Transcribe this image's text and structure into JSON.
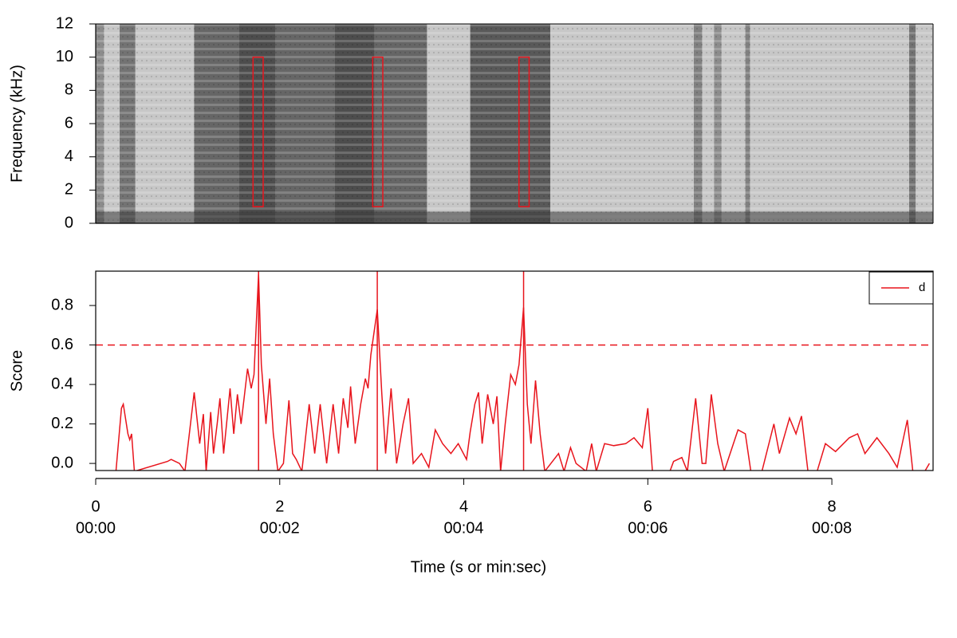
{
  "chart_data": [
    {
      "type": "spectrogram",
      "y_label": "Frequency (kHz)",
      "xlim": [
        0,
        9.1
      ],
      "ylim": [
        0,
        12
      ],
      "yticks": [
        0,
        2,
        4,
        6,
        8,
        10,
        12
      ],
      "background_level": 0.22,
      "bands": [
        {
          "start": 0,
          "end": 0.09,
          "level": 0.45
        },
        {
          "start": 0.26,
          "end": 0.43,
          "level": 0.55
        },
        {
          "start": 1.07,
          "end": 1.56,
          "level": 0.6
        },
        {
          "start": 1.56,
          "end": 1.95,
          "level": 0.7
        },
        {
          "start": 1.95,
          "end": 2.6,
          "level": 0.6
        },
        {
          "start": 2.6,
          "end": 3.03,
          "level": 0.7
        },
        {
          "start": 3.03,
          "end": 3.6,
          "level": 0.6
        },
        {
          "start": 4.07,
          "end": 4.94,
          "level": 0.65
        },
        {
          "start": 6.5,
          "end": 6.59,
          "level": 0.5
        },
        {
          "start": 6.72,
          "end": 6.8,
          "level": 0.45
        },
        {
          "start": 7.06,
          "end": 7.11,
          "level": 0.5
        },
        {
          "start": 8.84,
          "end": 8.91,
          "level": 0.55
        }
      ],
      "box_color": "#e8141c",
      "boxes": [
        {
          "start": 1.71,
          "end": 1.82,
          "low": 1,
          "high": 10
        },
        {
          "start": 3.01,
          "end": 3.12,
          "low": 1,
          "high": 10
        },
        {
          "start": 4.6,
          "end": 4.71,
          "low": 1,
          "high": 10
        }
      ]
    },
    {
      "type": "line",
      "y_label": "Score",
      "x_label": "Time (s or min:sec)",
      "xlim": [
        0,
        9.1
      ],
      "ylim": [
        -0.036,
        0.974
      ],
      "xticks": [
        0,
        2,
        4,
        6,
        8
      ],
      "xtick_time_labels": [
        {
          "value": 0,
          "label": "00:00"
        },
        {
          "value": 2,
          "label": "00:02"
        },
        {
          "value": 4,
          "label": "00:04"
        },
        {
          "value": 6,
          "label": "00:06"
        },
        {
          "value": 8,
          "label": "00:08"
        }
      ],
      "yticks": [
        {
          "value": 0,
          "label": "0.0"
        },
        0.2,
        0.4,
        0.6,
        0.8
      ],
      "threshold": 0.6,
      "detections": [
        1.77,
        3.06,
        4.65
      ],
      "legend": "topright",
      "x": [
        0.22,
        0.28,
        0.3,
        0.35,
        0.37,
        0.39,
        0.42,
        0.78,
        0.82,
        0.91,
        0.97,
        1.07,
        1.13,
        1.17,
        1.2,
        1.25,
        1.28,
        1.32,
        1.35,
        1.39,
        1.46,
        1.5,
        1.54,
        1.58,
        1.65,
        1.69,
        1.72,
        1.77,
        1.8,
        1.85,
        1.89,
        1.93,
        1.98,
        2.04,
        2.1,
        2.14,
        2.18,
        2.24,
        2.32,
        2.38,
        2.44,
        2.51,
        2.58,
        2.64,
        2.69,
        2.74,
        2.77,
        2.82,
        2.88,
        2.93,
        2.96,
        2.99,
        3.06,
        3.11,
        3.15,
        3.21,
        3.27,
        3.34,
        3.4,
        3.45,
        3.54,
        3.62,
        3.69,
        3.77,
        3.86,
        3.94,
        4.03,
        4.07,
        4.12,
        4.16,
        4.2,
        4.26,
        4.32,
        4.36,
        4.4,
        4.45,
        4.51,
        4.56,
        4.6,
        4.65,
        4.69,
        4.73,
        4.78,
        4.83,
        4.88,
        5.03,
        5.09,
        5.16,
        5.22,
        5.33,
        5.39,
        5.44,
        5.53,
        5.63,
        5.76,
        5.85,
        5.94,
        6.0,
        6.05,
        6.24,
        6.28,
        6.37,
        6.43,
        6.52,
        6.59,
        6.63,
        6.69,
        6.76,
        6.83,
        6.98,
        7.06,
        7.12,
        7.24,
        7.37,
        7.43,
        7.54,
        7.61,
        7.67,
        7.74,
        7.84,
        7.93,
        8.04,
        8.19,
        8.28,
        8.36,
        8.49,
        8.62,
        8.71,
        8.82,
        8.88,
        9.01,
        9.06
      ],
      "series": [
        {
          "name": "d",
          "color": "#e8141c",
          "values": [
            -0.04,
            0.28,
            0.3,
            0.15,
            0.12,
            0.15,
            -0.04,
            0.01,
            0.02,
            0.0,
            -0.04,
            0.36,
            0.1,
            0.25,
            -0.04,
            0.26,
            0.05,
            0.2,
            0.33,
            0.05,
            0.38,
            0.15,
            0.35,
            0.2,
            0.48,
            0.38,
            0.45,
            0.96,
            0.5,
            0.2,
            0.43,
            0.15,
            -0.04,
            0.0,
            0.32,
            0.05,
            0.02,
            -0.04,
            0.3,
            0.05,
            0.3,
            0.0,
            0.3,
            0.05,
            0.33,
            0.18,
            0.39,
            0.1,
            0.3,
            0.43,
            0.38,
            0.55,
            0.78,
            0.35,
            0.05,
            0.38,
            0.0,
            0.2,
            0.33,
            0.0,
            0.05,
            -0.02,
            0.17,
            0.1,
            0.05,
            0.1,
            0.02,
            0.16,
            0.3,
            0.36,
            0.1,
            0.35,
            0.2,
            0.34,
            -0.04,
            0.2,
            0.45,
            0.4,
            0.5,
            0.79,
            0.3,
            0.1,
            0.42,
            0.15,
            -0.04,
            0.05,
            -0.04,
            0.08,
            0.0,
            -0.04,
            0.1,
            -0.04,
            0.1,
            0.09,
            0.1,
            0.13,
            0.08,
            0.28,
            -0.04,
            -0.04,
            0.01,
            0.03,
            -0.04,
            0.33,
            0.0,
            0.0,
            0.35,
            0.1,
            -0.04,
            0.17,
            0.15,
            -0.04,
            -0.04,
            0.2,
            0.05,
            0.23,
            0.15,
            0.24,
            -0.04,
            -0.04,
            0.1,
            0.06,
            0.13,
            0.15,
            0.05,
            0.13,
            0.05,
            -0.02,
            0.22,
            -0.04,
            -0.04,
            0.0
          ]
        }
      ]
    }
  ]
}
